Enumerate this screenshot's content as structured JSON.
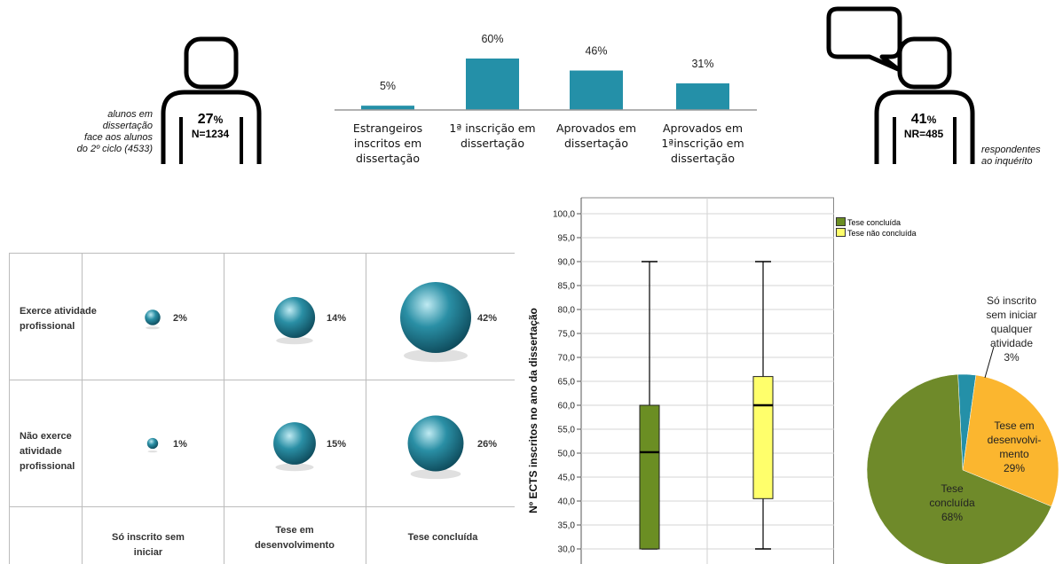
{
  "left_figure": {
    "note": [
      "alunos em",
      "dissertação",
      "face aos alunos",
      "do 2º ciclo (4533)"
    ],
    "pct_num": "27",
    "pct_sign": "%",
    "n": "N=1234"
  },
  "right_figure": {
    "note": [
      "respondentes",
      "ao inquérito"
    ],
    "pct_num": "41",
    "pct_sign": "%",
    "n": "NR=485"
  },
  "chart_data": [
    {
      "type": "bar",
      "categories": [
        "Estrangeiros inscritos em dissertação",
        "1ª inscrição em dissertação",
        "Aprovados em dissertação",
        "Aprovados em 1ªinscrição em dissertação"
      ],
      "category_lines": [
        [
          "Estrangeiros",
          "inscritos em",
          "dissertação"
        ],
        [
          "1ª inscrição em",
          "dissertação"
        ],
        [
          "Aprovados em",
          "dissertação"
        ],
        [
          "Aprovados em",
          "1ªinscrição em",
          "dissertação"
        ]
      ],
      "values": [
        5,
        60,
        46,
        31
      ],
      "data_labels": [
        "5%",
        "60%",
        "46%",
        "31%"
      ],
      "ylim": [
        0,
        60
      ],
      "color": "#2490a8"
    },
    {
      "type": "scatter",
      "columns": [
        [
          "Só inscrito sem",
          "iniciar"
        ],
        [
          "Tese em",
          "desenvolvimento"
        ],
        [
          "Tese concluída"
        ]
      ],
      "rows": [
        [
          "Exerce atividade",
          "profissional"
        ],
        [
          "Não exerce",
          "atividade",
          "profissional"
        ]
      ],
      "values": [
        [
          2,
          14,
          42
        ],
        [
          1,
          15,
          26
        ]
      ],
      "data_labels": [
        [
          "2%",
          "14%",
          "42%"
        ],
        [
          "1%",
          "15%",
          "26%"
        ]
      ],
      "color": "#2a8fa5"
    },
    {
      "type": "box",
      "ylabel": "Nº ECTS inscritos no ano da dissertação",
      "ylim": [
        30,
        100
      ],
      "yticks": [
        "30,0",
        "35,0",
        "40,0",
        "45,0",
        "50,0",
        "55,0",
        "60,0",
        "65,0",
        "70,0",
        "75,0",
        "80,0",
        "85,0",
        "90,0",
        "95,0",
        "100,0"
      ],
      "legend": [
        "Tese concluída",
        "Tese não concluída"
      ],
      "legend_position": "top-right",
      "series": [
        {
          "name": "Tese concluída",
          "color": "#6b8e23",
          "min": 30,
          "q1": 30,
          "median": 50.2,
          "q3": 60,
          "max": 90
        },
        {
          "name": "Tese não concluída",
          "color": "#ffff6b",
          "min": 30,
          "q1": 40.5,
          "median": 60,
          "q3": 66,
          "max": 90
        }
      ]
    },
    {
      "type": "pie",
      "slices": [
        {
          "label_lines": [
            "Só inscrito",
            "sem iniciar",
            "qualquer",
            "atividade",
            "3%"
          ],
          "value": 3,
          "color": "#2490a8"
        },
        {
          "label_lines": [
            "Tese em",
            "desenvolvi-",
            "mento",
            "29%"
          ],
          "value": 29,
          "color": "#fbb62f"
        },
        {
          "label_lines": [
            "Tese",
            "concluída",
            "68%"
          ],
          "value": 68,
          "color": "#6f8a2a"
        }
      ]
    }
  ]
}
